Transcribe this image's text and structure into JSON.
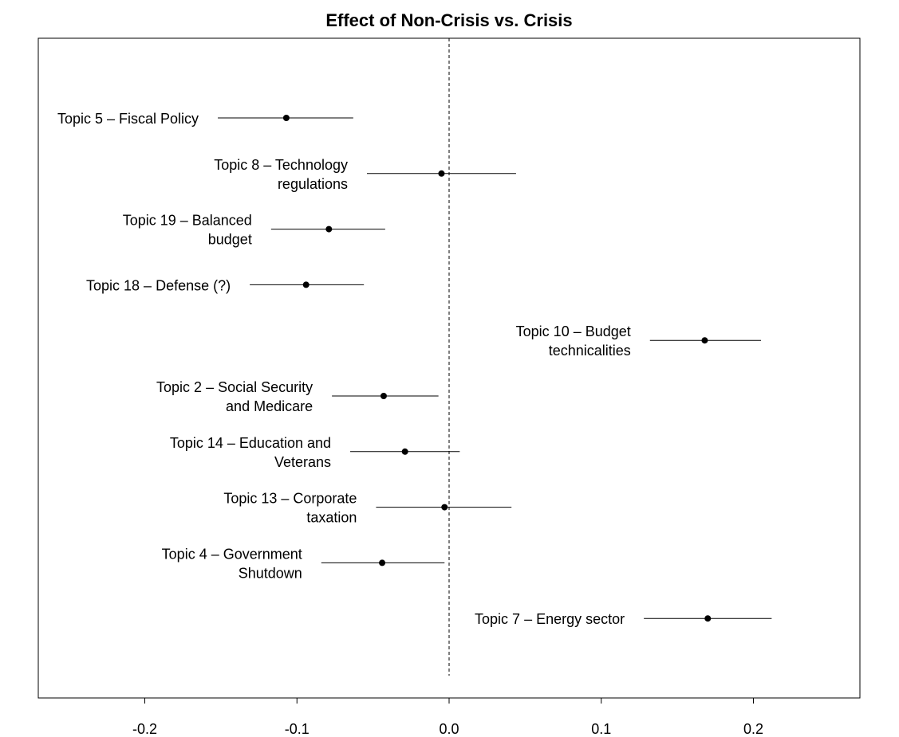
{
  "chart_data": {
    "type": "scatter",
    "subtype": "coefficient-plot",
    "title": "Effect of Non-Crisis vs. Crisis",
    "xlabel": "",
    "ylabel": "",
    "xlim": [
      -0.27,
      0.27
    ],
    "xticks": [
      -0.2,
      -0.1,
      0.0,
      0.1,
      0.2
    ],
    "xtick_labels": [
      "-0.2",
      "-0.1",
      "0.0",
      "0.1",
      "0.2"
    ],
    "reference_line": {
      "x": 0,
      "style": "dashed"
    },
    "grid": false,
    "points": [
      {
        "label": [
          "Topic 5 – Fiscal Policy"
        ],
        "estimate": -0.107,
        "ci_low": -0.152,
        "ci_high": -0.063
      },
      {
        "label": [
          "Topic 8 – Technology",
          "regulations"
        ],
        "estimate": -0.005,
        "ci_low": -0.054,
        "ci_high": 0.044
      },
      {
        "label": [
          "Topic 19 – Balanced",
          "budget"
        ],
        "estimate": -0.079,
        "ci_low": -0.117,
        "ci_high": -0.042
      },
      {
        "label": [
          "Topic 18 – Defense (?)"
        ],
        "estimate": -0.094,
        "ci_low": -0.131,
        "ci_high": -0.056
      },
      {
        "label": [
          "Topic 10 – Budget",
          "technicalities"
        ],
        "estimate": 0.168,
        "ci_low": 0.132,
        "ci_high": 0.205
      },
      {
        "label": [
          "Topic 2 – Social Security",
          "and Medicare"
        ],
        "estimate": -0.043,
        "ci_low": -0.077,
        "ci_high": -0.007
      },
      {
        "label": [
          "Topic 14 – Education and",
          "Veterans"
        ],
        "estimate": -0.029,
        "ci_low": -0.065,
        "ci_high": 0.007
      },
      {
        "label": [
          "Topic 13 – Corporate",
          "taxation"
        ],
        "estimate": -0.003,
        "ci_low": -0.048,
        "ci_high": 0.041
      },
      {
        "label": [
          "Topic 4 – Government",
          "Shutdown"
        ],
        "estimate": -0.044,
        "ci_low": -0.084,
        "ci_high": -0.003
      },
      {
        "label": [
          "Topic 7 – Energy sector"
        ],
        "estimate": 0.17,
        "ci_low": 0.128,
        "ci_high": 0.212
      }
    ]
  }
}
